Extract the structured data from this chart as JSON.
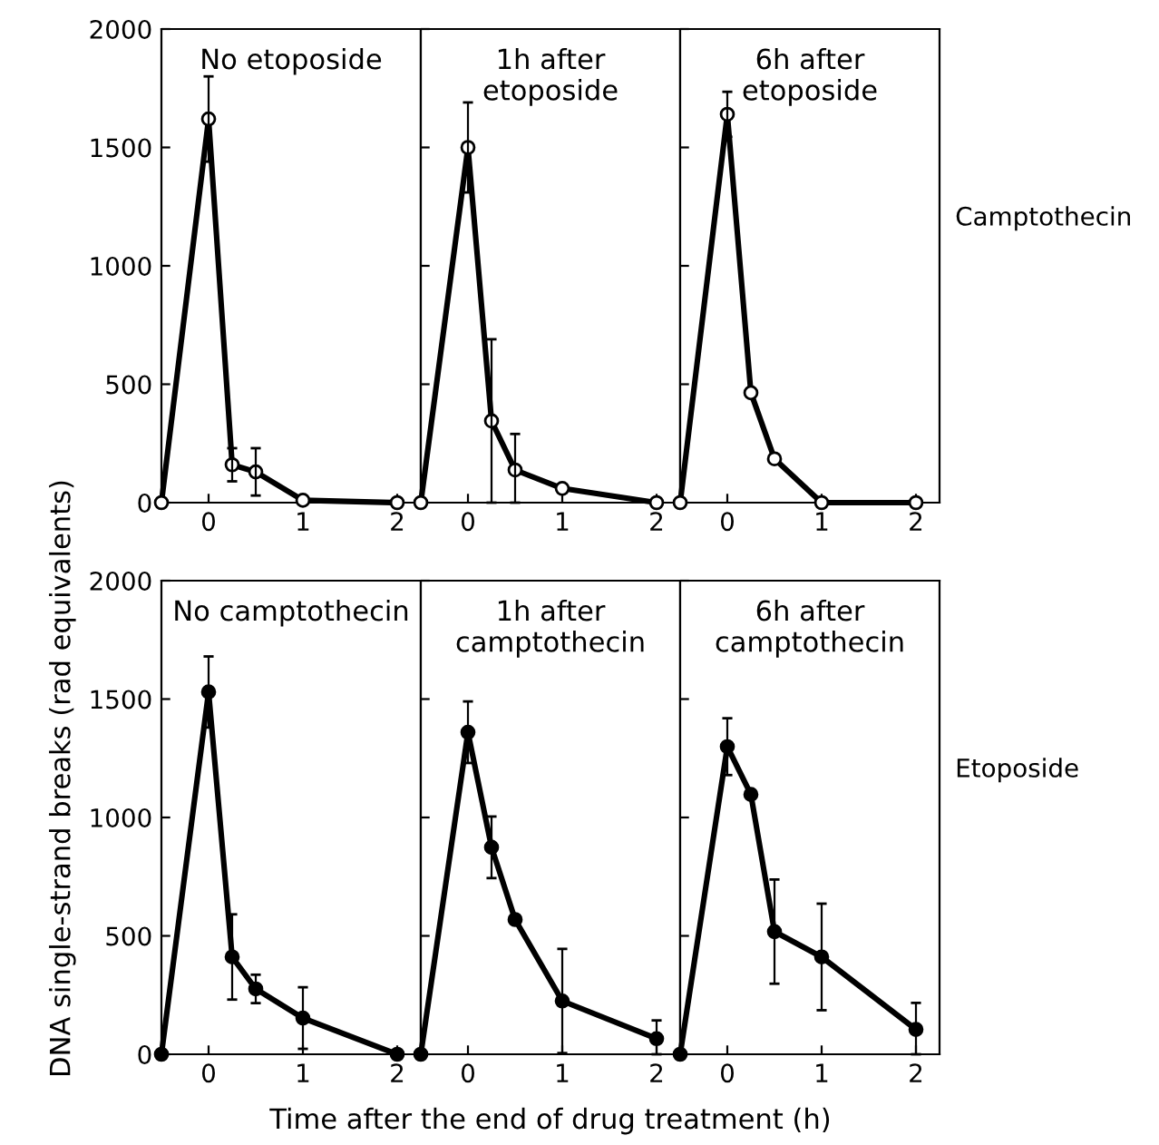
{
  "chart_data": [
    {
      "type": "line",
      "title": "No etoposide",
      "ylabel": "DNA single-strand breaks (rad equivalents)",
      "x": [
        -0.5,
        0,
        0.25,
        0.5,
        1,
        2
      ],
      "xlim": [
        -0.5,
        2.25
      ],
      "xticks": [
        0,
        1,
        2
      ],
      "ylim": [
        0,
        2000
      ],
      "yticks": [
        0,
        500,
        1000,
        1500,
        2000
      ],
      "marker": "circle",
      "series": [
        {
          "color": "#000000",
          "values": [
            0,
            1620,
            160,
            130,
            10,
            0
          ],
          "errors": [
            null,
            180,
            70,
            100,
            null,
            null
          ]
        }
      ]
    },
    {
      "type": "line",
      "title": "1h after\netoposide",
      "x": [
        -0.5,
        0,
        0.25,
        0.5,
        1,
        2
      ],
      "xlim": [
        -0.5,
        2.25
      ],
      "xticks": [
        0,
        1,
        2
      ],
      "ylim": [
        0,
        2000
      ],
      "yticks": [
        0,
        500,
        1000,
        1500,
        2000
      ],
      "tick_labels": "x",
      "marker": "circle",
      "series": [
        {
          "color": "#000000",
          "values": [
            0,
            1500,
            345,
            138,
            60,
            0
          ],
          "errors": [
            null,
            190,
            [
              0,
              690
            ],
            [
              0,
              290
            ],
            null,
            null
          ]
        }
      ]
    },
    {
      "type": "line",
      "title": "6h after\netoposide",
      "annotations": [
        "Camptothecin"
      ],
      "x": [
        -0.5,
        0,
        0.25,
        0.5,
        1,
        2
      ],
      "xlim": [
        -0.5,
        2.25
      ],
      "xticks": [
        0,
        1,
        2
      ],
      "ylim": [
        0,
        2000
      ],
      "yticks": [
        0,
        500,
        1000,
        1500,
        2000
      ],
      "tick_labels": "x",
      "marker": "circle",
      "series": [
        {
          "color": "#000000",
          "values": [
            0,
            1640,
            464,
            185,
            0,
            0
          ],
          "errors": [
            null,
            95,
            null,
            null,
            null,
            null
          ]
        }
      ]
    },
    {
      "type": "line",
      "title": "No camptothecin",
      "x": [
        -0.5,
        0,
        0.25,
        0.5,
        1,
        2
      ],
      "xlim": [
        -0.5,
        2.25
      ],
      "xticks": [
        0,
        1,
        2
      ],
      "ylim": [
        0,
        2000
      ],
      "yticks": [
        0,
        500,
        1000,
        1500,
        2000
      ],
      "marker": "circle",
      "series": [
        {
          "color": "#000000",
          "values": [
            0,
            1530,
            411,
            276,
            153,
            0
          ],
          "errors": [
            null,
            150,
            180,
            60,
            130,
            null
          ]
        }
      ]
    },
    {
      "type": "line",
      "title": "1h after\ncamptothecin",
      "xlabel": "Time after the end of drug treatment (h)",
      "x": [
        -0.5,
        0,
        0.25,
        0.5,
        1,
        2
      ],
      "xlim": [
        -0.5,
        2.25
      ],
      "xticks": [
        0,
        1,
        2
      ],
      "ylim": [
        0,
        2000
      ],
      "yticks": [
        0,
        500,
        1000,
        1500,
        2000
      ],
      "tick_labels": "x",
      "marker": "circle",
      "series": [
        {
          "color": "#000000",
          "values": [
            0,
            1360,
            874,
            569,
            225,
            66
          ],
          "errors": [
            null,
            130,
            130,
            null,
            220,
            [
              0,
              143
            ]
          ]
        }
      ]
    },
    {
      "type": "line",
      "title": "6h after\ncamptothecin",
      "annotations": [
        "Etoposide"
      ],
      "x": [
        -0.5,
        0,
        0.25,
        0.5,
        1,
        2
      ],
      "xlim": [
        -0.5,
        2.25
      ],
      "xticks": [
        0,
        1,
        2
      ],
      "ylim": [
        0,
        2000
      ],
      "yticks": [
        0,
        500,
        1000,
        1500,
        2000
      ],
      "tick_labels": "x",
      "marker": "circle",
      "series": [
        {
          "color": "#000000",
          "values": [
            0,
            1299,
            1097,
            518,
            411,
            105
          ],
          "errors": [
            null,
            120,
            null,
            220,
            225,
            [
              0,
              217
            ]
          ]
        }
      ]
    }
  ]
}
